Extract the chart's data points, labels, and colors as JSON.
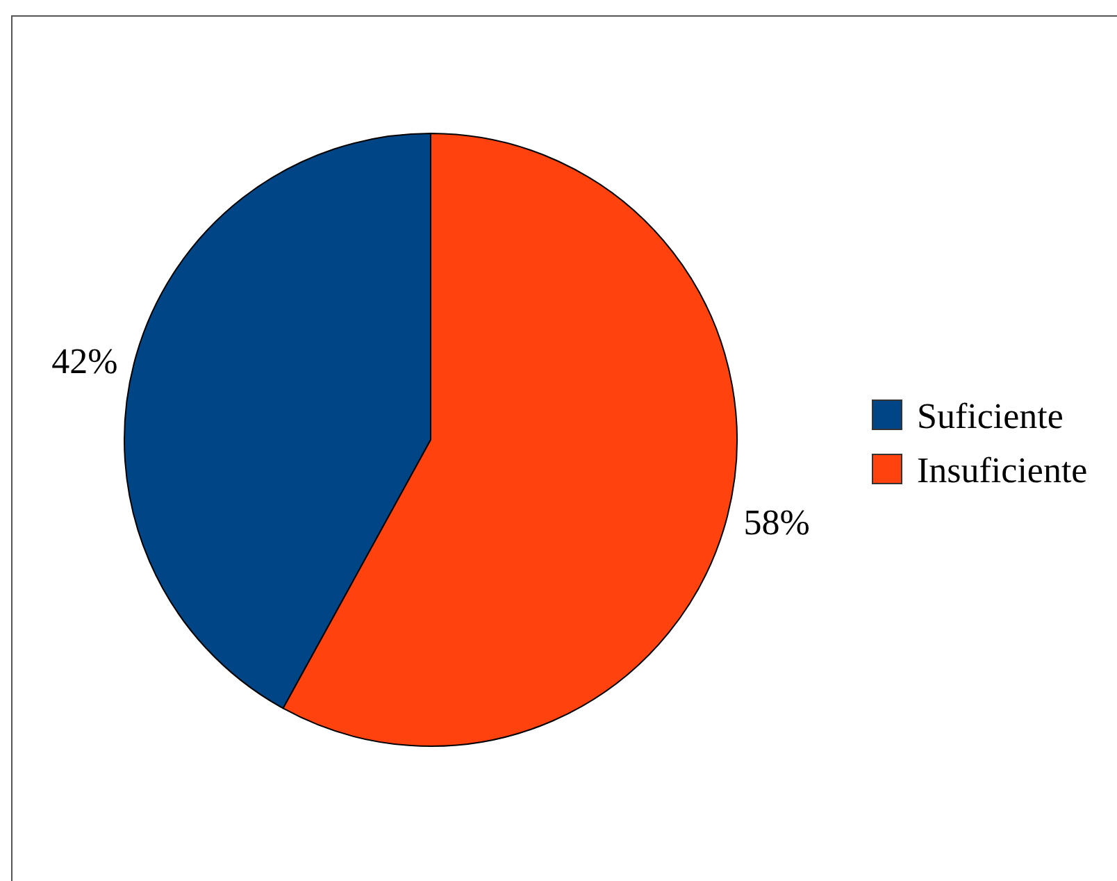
{
  "chart_data": {
    "type": "pie",
    "categories": [
      "Suficiente",
      "Insuficiente"
    ],
    "values": [
      42,
      58
    ],
    "colors": [
      "#004586",
      "#ff420e"
    ],
    "value_labels": [
      "42%",
      "58%"
    ],
    "legend": "right"
  }
}
